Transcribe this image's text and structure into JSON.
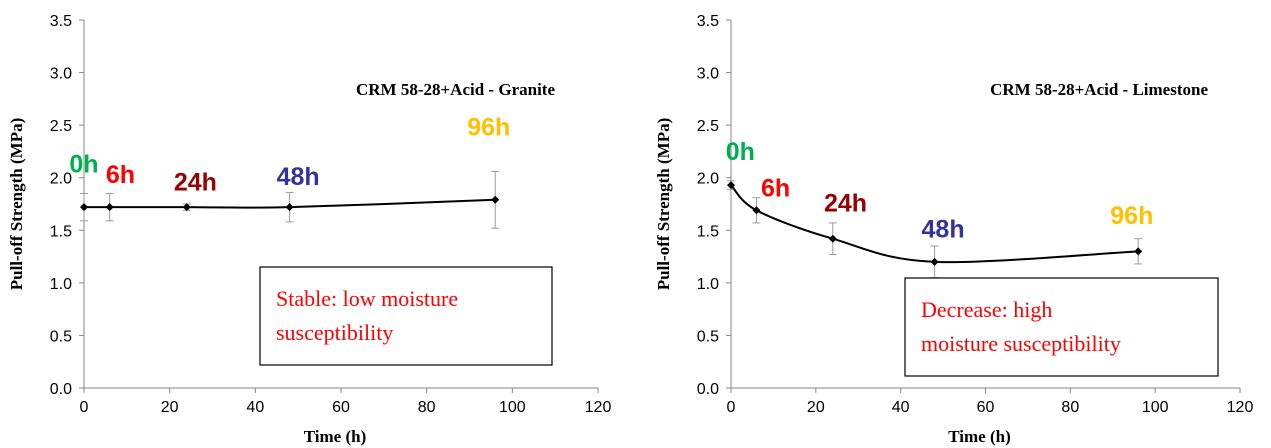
{
  "chart_data": [
    {
      "type": "line",
      "title": "CRM 58-28+Acid - Granite",
      "xlabel": "Time (h)",
      "ylabel": "Pull-off Strength (MPa)",
      "xlim": [
        0,
        120
      ],
      "ylim": [
        0,
        3.5
      ],
      "xticks": [
        0,
        20,
        40,
        60,
        80,
        100,
        120
      ],
      "yticks": [
        "0.0",
        "0.5",
        "1.0",
        "1.5",
        "2.0",
        "2.5",
        "3.0",
        "3.5"
      ],
      "grid": false,
      "series": [
        {
          "x": [
            0,
            6,
            24,
            48,
            96
          ],
          "y": [
            1.72,
            1.72,
            1.72,
            1.72,
            1.79
          ],
          "error": [
            0.13,
            0.13,
            0.03,
            0.14,
            0.27
          ]
        }
      ],
      "annotations": [
        {
          "text": "0h",
          "x": 0,
          "y": 2.05,
          "color": "#00b050"
        },
        {
          "text": "6h",
          "x": 8.5,
          "y": 1.95,
          "color": "#ff0000"
        },
        {
          "text": "24h",
          "x": 26,
          "y": 1.88,
          "color": "#990000"
        },
        {
          "text": "48h",
          "x": 50,
          "y": 1.93,
          "color": "#333399"
        },
        {
          "text": "96h",
          "x": 94.5,
          "y": 2.4,
          "color": "#ffc000"
        }
      ],
      "note": {
        "lines": [
          "Stable: low moisture",
          "susceptibility"
        ],
        "color": "#ff0000"
      }
    },
    {
      "type": "line",
      "title": "CRM 58-28+Acid - Limestone",
      "xlabel": "Time (h)",
      "ylabel": "Pull-off Strength (MPa)",
      "xlim": [
        0,
        120
      ],
      "ylim": [
        0,
        3.5
      ],
      "xticks": [
        0,
        20,
        40,
        60,
        80,
        100,
        120
      ],
      "yticks": [
        "0.0",
        "0.5",
        "1.0",
        "1.5",
        "2.0",
        "2.5",
        "3.0",
        "3.5"
      ],
      "grid": false,
      "series": [
        {
          "x": [
            0,
            6,
            24,
            48,
            96
          ],
          "y": [
            1.93,
            1.69,
            1.42,
            1.2,
            1.3
          ],
          "error": [
            0.04,
            0.12,
            0.15,
            0.15,
            0.12
          ]
        }
      ],
      "annotations": [
        {
          "text": "0h",
          "x": 2.2,
          "y": 2.17,
          "color": "#00b050"
        },
        {
          "text": "6h",
          "x": 10.5,
          "y": 1.82,
          "color": "#ff0000"
        },
        {
          "text": "24h",
          "x": 27,
          "y": 1.68,
          "color": "#990000"
        },
        {
          "text": "48h",
          "x": 50,
          "y": 1.43,
          "color": "#333399"
        },
        {
          "text": "96h",
          "x": 94.5,
          "y": 1.56,
          "color": "#ffc000"
        }
      ],
      "note": {
        "lines": [
          "Decrease: high",
          "moisture susceptibility"
        ],
        "color": "#ff0000"
      }
    }
  ]
}
